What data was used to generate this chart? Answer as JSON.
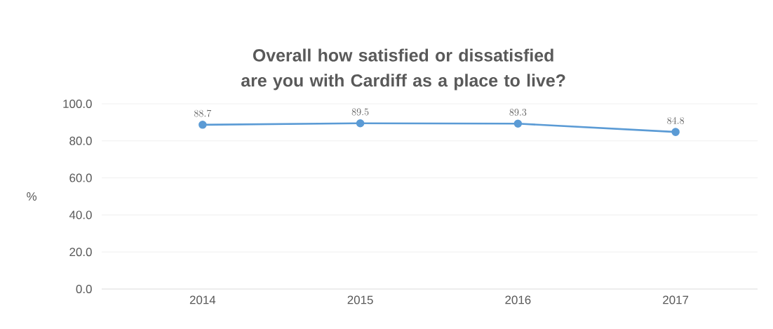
{
  "chart_data": {
    "type": "line",
    "title": "Overall how satisfied or dissatisfied are you with Cardiff as a place to live?",
    "ylabel": "%",
    "categories": [
      "2014",
      "2015",
      "2016",
      "2017"
    ],
    "values": [
      88.7,
      89.5,
      89.3,
      84.8
    ],
    "color": "#5b9bd5",
    "ylim": [
      0,
      100
    ],
    "yticks": [
      {
        "value": 0,
        "label": "0.0"
      },
      {
        "value": 20,
        "label": "20.0"
      },
      {
        "value": 40,
        "label": "40.0"
      },
      {
        "value": 60,
        "label": "60.0"
      },
      {
        "value": 80,
        "label": "80.0"
      },
      {
        "value": 100,
        "label": "100.0"
      }
    ],
    "grid": "y",
    "marker": "circle",
    "line_style": "solid",
    "data_labels": true
  }
}
